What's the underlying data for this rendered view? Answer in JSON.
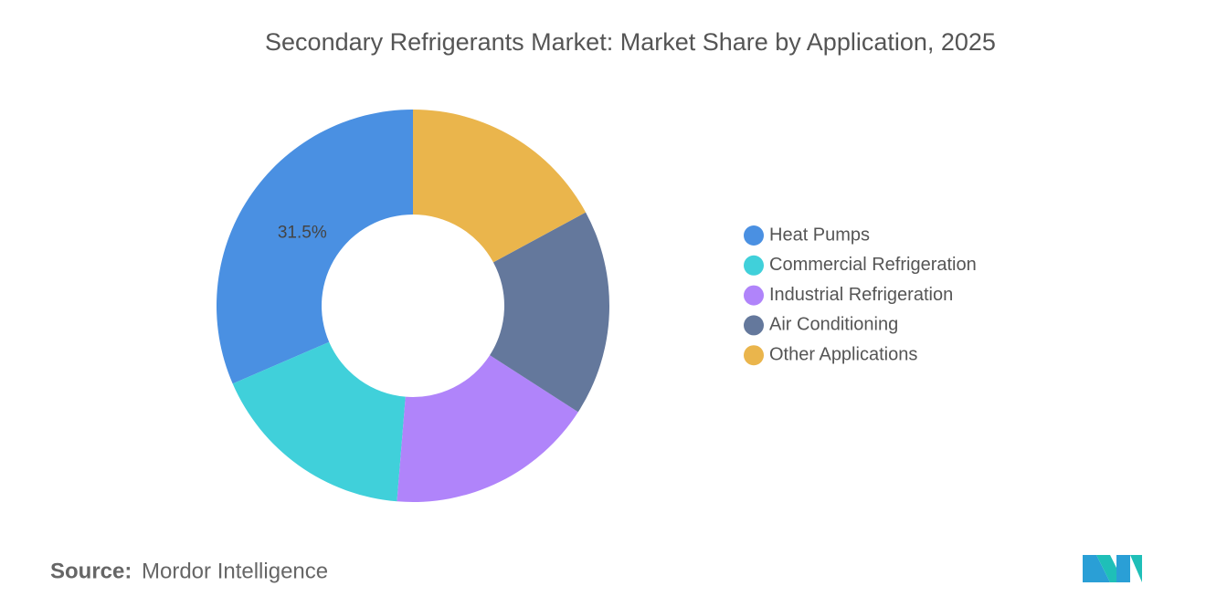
{
  "chart_data": {
    "type": "donut",
    "title": "Secondary Refrigerants Market: Market Share by Application, 2025",
    "categories": [
      "Heat Pumps",
      "Commercial Refrigeration",
      "Industrial Refrigeration",
      "Air Conditioning",
      "Other Applications"
    ],
    "values": [
      31.5,
      17.2,
      17.2,
      17.0,
      17.1
    ],
    "value_labels": [
      "31.5%",
      null,
      null,
      null,
      null
    ],
    "colors": [
      "#4a90e2",
      "#40d0da",
      "#b084fa",
      "#64789c",
      "#eab54c"
    ],
    "legend": "right"
  },
  "source": {
    "label": "Source:",
    "text": "Mordor Intelligence"
  }
}
